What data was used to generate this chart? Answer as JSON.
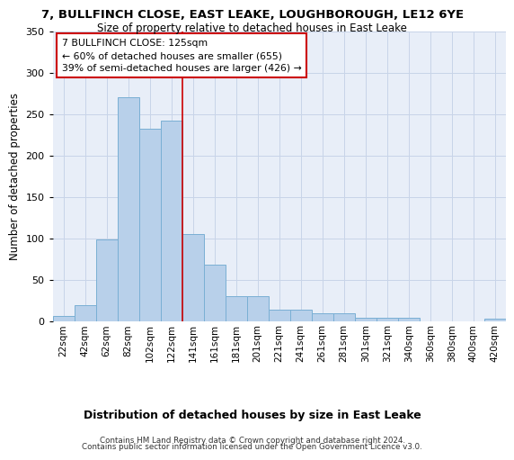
{
  "title1": "7, BULLFINCH CLOSE, EAST LEAKE, LOUGHBOROUGH, LE12 6YE",
  "title2": "Size of property relative to detached houses in East Leake",
  "xlabel": "Distribution of detached houses by size in East Leake",
  "ylabel": "Number of detached properties",
  "bar_color": "#b8d0ea",
  "bar_edge_color": "#7aafd4",
  "categories": [
    "22sqm",
    "42sqm",
    "62sqm",
    "82sqm",
    "102sqm",
    "122sqm",
    "141sqm",
    "161sqm",
    "181sqm",
    "201sqm",
    "221sqm",
    "241sqm",
    "261sqm",
    "281sqm",
    "301sqm",
    "321sqm",
    "340sqm",
    "360sqm",
    "380sqm",
    "400sqm",
    "420sqm"
  ],
  "values": [
    7,
    19,
    99,
    270,
    232,
    242,
    105,
    68,
    30,
    30,
    14,
    14,
    10,
    10,
    4,
    4,
    4,
    0,
    0,
    0,
    3
  ],
  "vline_x_index": 5,
  "vline_color": "#cc0000",
  "annotation_line1": "7 BULLFINCH CLOSE: 125sqm",
  "annotation_line2": "← 60% of detached houses are smaller (655)",
  "annotation_line3": "39% of semi-detached houses are larger (426) →",
  "box_edge_color": "#cc0000",
  "footer1": "Contains HM Land Registry data © Crown copyright and database right 2024.",
  "footer2": "Contains public sector information licensed under the Open Government Licence v3.0.",
  "grid_color": "#c8d4e8",
  "bg_color": "#e8eef8",
  "ylim": [
    0,
    350
  ],
  "yticks": [
    0,
    50,
    100,
    150,
    200,
    250,
    300,
    350
  ]
}
